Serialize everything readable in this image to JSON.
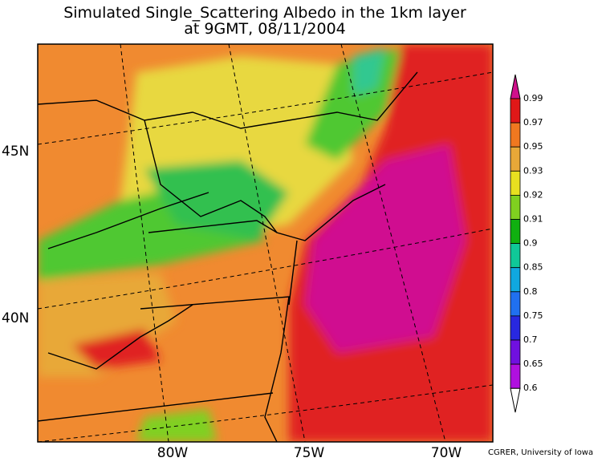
{
  "title": {
    "line1": "Simulated Single_Scattering Albedo in the 1km layer",
    "line2": "at 9GMT, 08/11/2004"
  },
  "lat_labels": [
    "45N",
    "40N"
  ],
  "lon_labels": [
    "80W",
    "75W",
    "70W"
  ],
  "colorbar": {
    "labels": [
      "0.99",
      "0.97",
      "0.95",
      "0.93",
      "0.92",
      "0.91",
      "0.9",
      "0.85",
      "0.8",
      "0.75",
      "0.7",
      "0.65",
      "0.6"
    ],
    "colors": [
      "#e01818",
      "#f07820",
      "#e8a838",
      "#e8e020",
      "#80d020",
      "#10b010",
      "#10c898",
      "#10a8e0",
      "#2070f0",
      "#2828e0",
      "#7010e0",
      "#b010e0"
    ],
    "top_color": "#d0108c"
  },
  "credit": "CGRER, University of Iowa"
}
